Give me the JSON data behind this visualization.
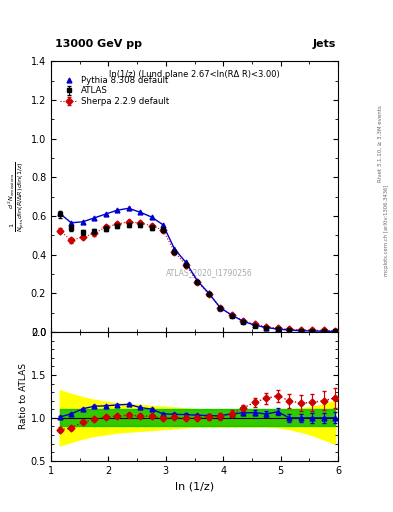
{
  "title_top": "13000 GeV pp",
  "title_right": "Jets",
  "panel_title": "ln(1/z) (Lund plane 2.67<ln(RΔ R)<3.00)",
  "watermark": "ATLAS_2020_I1790256",
  "right_label_top": "Rivet 3.1.10, ≥ 3.3M events",
  "right_label_bottom": "mcplots.cern.ch [arXiv:1306.3436]",
  "xlabel": "ln (1/z)",
  "ylabel_ratio": "Ratio to ATLAS",
  "xlim": [
    1.0,
    6.0
  ],
  "ylim_main": [
    0.0,
    1.4
  ],
  "ylim_ratio": [
    0.5,
    2.0
  ],
  "atlas_x": [
    1.15,
    1.35,
    1.55,
    1.75,
    1.95,
    2.15,
    2.35,
    2.55,
    2.75,
    2.95,
    3.15,
    3.35,
    3.55,
    3.75,
    3.95,
    4.15,
    4.35,
    4.55,
    4.75,
    4.95,
    5.15,
    5.35,
    5.55,
    5.75,
    5.95
  ],
  "atlas_y": [
    0.608,
    0.54,
    0.515,
    0.52,
    0.535,
    0.548,
    0.553,
    0.553,
    0.54,
    0.53,
    0.413,
    0.347,
    0.257,
    0.195,
    0.122,
    0.083,
    0.052,
    0.033,
    0.022,
    0.014,
    0.01,
    0.007,
    0.005,
    0.004,
    0.003
  ],
  "atlas_yerr": [
    0.02,
    0.015,
    0.012,
    0.012,
    0.012,
    0.012,
    0.012,
    0.012,
    0.012,
    0.012,
    0.01,
    0.009,
    0.007,
    0.006,
    0.004,
    0.003,
    0.002,
    0.002,
    0.001,
    0.001,
    0.001,
    0.001,
    0.001,
    0.001,
    0.001
  ],
  "pythia_x": [
    1.15,
    1.35,
    1.55,
    1.75,
    1.95,
    2.15,
    2.35,
    2.55,
    2.75,
    2.95,
    3.15,
    3.35,
    3.55,
    3.75,
    3.95,
    4.15,
    4.35,
    4.55,
    4.75,
    4.95,
    5.15,
    5.35,
    5.55,
    5.75,
    5.95
  ],
  "pythia_y": [
    0.614,
    0.565,
    0.57,
    0.59,
    0.61,
    0.63,
    0.64,
    0.62,
    0.595,
    0.555,
    0.43,
    0.36,
    0.265,
    0.2,
    0.125,
    0.087,
    0.055,
    0.035,
    0.023,
    0.015,
    0.01,
    0.007,
    0.005,
    0.004,
    0.003
  ],
  "sherpa_x": [
    1.15,
    1.35,
    1.55,
    1.75,
    1.95,
    2.15,
    2.35,
    2.55,
    2.75,
    2.95,
    3.15,
    3.35,
    3.55,
    3.75,
    3.95,
    4.15,
    4.35,
    4.55,
    4.75,
    4.95,
    5.15,
    5.35,
    5.55,
    5.75,
    5.95
  ],
  "sherpa_y": [
    0.525,
    0.475,
    0.49,
    0.51,
    0.542,
    0.558,
    0.57,
    0.565,
    0.55,
    0.527,
    0.415,
    0.345,
    0.258,
    0.197,
    0.124,
    0.087,
    0.058,
    0.039,
    0.027,
    0.019,
    0.014,
    0.011,
    0.009,
    0.008,
    0.007
  ],
  "sherpa_yerr": [
    0.015,
    0.012,
    0.011,
    0.011,
    0.011,
    0.011,
    0.011,
    0.011,
    0.011,
    0.011,
    0.009,
    0.008,
    0.007,
    0.006,
    0.004,
    0.003,
    0.002,
    0.002,
    0.002,
    0.002,
    0.002,
    0.002,
    0.002,
    0.002,
    0.002
  ],
  "pythia_ratio": [
    1.01,
    1.046,
    1.106,
    1.135,
    1.14,
    1.15,
    1.158,
    1.121,
    1.102,
    1.047,
    1.041,
    1.038,
    1.031,
    1.026,
    1.025,
    1.048,
    1.058,
    1.061,
    1.045,
    1.071,
    1.0,
    1.0,
    1.0,
    1.0,
    1.0
  ],
  "sherpa_ratio": [
    0.864,
    0.88,
    0.951,
    0.981,
    1.013,
    1.018,
    1.031,
    1.022,
    1.019,
    0.994,
    1.005,
    0.994,
    1.004,
    1.01,
    1.016,
    1.048,
    1.115,
    1.182,
    1.227,
    1.257,
    1.2,
    1.171,
    1.18,
    1.2,
    1.233
  ],
  "sherpa_ratio_err": [
    0.025,
    0.022,
    0.02,
    0.02,
    0.02,
    0.02,
    0.02,
    0.02,
    0.02,
    0.02,
    0.022,
    0.023,
    0.027,
    0.031,
    0.036,
    0.038,
    0.04,
    0.05,
    0.06,
    0.07,
    0.08,
    0.09,
    0.1,
    0.11,
    0.12
  ],
  "pythia_ratio_err": [
    0.015,
    0.012,
    0.011,
    0.011,
    0.011,
    0.011,
    0.011,
    0.011,
    0.011,
    0.011,
    0.012,
    0.013,
    0.015,
    0.017,
    0.02,
    0.022,
    0.025,
    0.03,
    0.035,
    0.04,
    0.045,
    0.05,
    0.055,
    0.06,
    0.065
  ],
  "atlas_color": "#000000",
  "pythia_color": "#0000cc",
  "sherpa_color": "#cc0000",
  "band_yellow": "#ffff00",
  "band_green": "#00bb00",
  "green_band_upper": [
    1.1,
    1.1,
    1.1,
    1.1,
    1.1,
    1.1,
    1.1,
    1.1,
    1.1,
    1.1,
    1.1,
    1.1,
    1.1,
    1.1,
    1.1,
    1.1,
    1.1,
    1.1,
    1.1,
    1.1,
    1.1,
    1.1,
    1.1,
    1.1,
    1.1
  ],
  "green_band_lower": [
    0.9,
    0.9,
    0.9,
    0.9,
    0.9,
    0.9,
    0.9,
    0.9,
    0.9,
    0.9,
    0.9,
    0.9,
    0.9,
    0.9,
    0.9,
    0.9,
    0.9,
    0.9,
    0.9,
    0.9,
    0.9,
    0.9,
    0.9,
    0.9,
    0.9
  ],
  "yellow_band_upper": [
    1.32,
    1.28,
    1.24,
    1.21,
    1.19,
    1.17,
    1.16,
    1.15,
    1.14,
    1.13,
    1.12,
    1.11,
    1.1,
    1.1,
    1.1,
    1.1,
    1.1,
    1.1,
    1.1,
    1.1,
    1.1,
    1.11,
    1.13,
    1.16,
    1.2
  ],
  "yellow_band_lower": [
    0.68,
    0.72,
    0.76,
    0.79,
    0.81,
    0.83,
    0.84,
    0.85,
    0.86,
    0.87,
    0.88,
    0.89,
    0.9,
    0.9,
    0.9,
    0.9,
    0.9,
    0.9,
    0.9,
    0.89,
    0.87,
    0.84,
    0.8,
    0.75,
    0.7
  ]
}
